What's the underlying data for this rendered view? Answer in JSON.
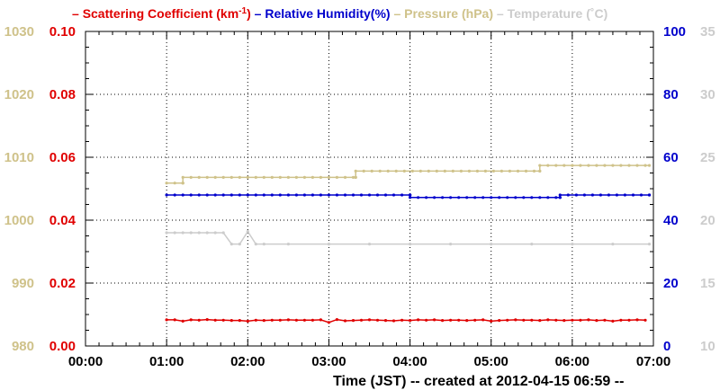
{
  "chart_data": {
    "type": "line",
    "legend_placement": "top",
    "grid": true,
    "grid_style": "dotted",
    "legend": [
      {
        "marker": "–",
        "label_prefix": "Scattering Coefficient (km",
        "label_sup": "-1",
        "label_suffix": ")",
        "color": "#e00000"
      },
      {
        "marker": "–",
        "label": "Relative Humidity(%)",
        "color": "#0000cc"
      },
      {
        "marker": "–",
        "label": "Pressure (hPa)",
        "color": "#cfc28a"
      },
      {
        "marker": "–",
        "label": "Temperature (˚C)",
        "color": "#cccccc"
      }
    ],
    "x_axis": {
      "ticks": [
        "00:00",
        "01:00",
        "02:00",
        "03:00",
        "04:00",
        "05:00",
        "06:00",
        "07:00"
      ],
      "range_hours": [
        0,
        7
      ],
      "title": "Time (JST)   -- created at 2012-04-15 06:59 --"
    },
    "y_axes": [
      {
        "id": "pressure",
        "side": "left-outer",
        "color": "#cfc28a",
        "range": [
          980,
          1030
        ],
        "ticks": [
          "980",
          "990",
          "1000",
          "1010",
          "1020",
          "1030"
        ]
      },
      {
        "id": "scattering",
        "side": "left-inner",
        "color": "#e00000",
        "range": [
          0,
          0.1
        ],
        "ticks": [
          "0.00",
          "0.02",
          "0.04",
          "0.06",
          "0.08",
          "0.10"
        ]
      },
      {
        "id": "humidity",
        "side": "right-inner",
        "color": "#0000cc",
        "range": [
          0,
          100
        ],
        "ticks": [
          "0",
          "20",
          "40",
          "60",
          "80",
          "100"
        ]
      },
      {
        "id": "temperature",
        "side": "right-outer",
        "color": "#cccccc",
        "range": [
          10,
          35
        ],
        "ticks": [
          "10",
          "15",
          "20",
          "25",
          "30",
          "35"
        ]
      }
    ],
    "series": [
      {
        "axis": "pressure",
        "color": "#cfc28a",
        "segments": [
          {
            "from": 1.0,
            "to": 1.2,
            "value": 1005.9
          },
          {
            "from": 1.2,
            "to": 3.33,
            "value": 1006.8
          },
          {
            "from": 3.33,
            "to": 5.6,
            "value": 1007.8
          },
          {
            "from": 5.6,
            "to": 6.95,
            "value": 1008.7
          }
        ]
      },
      {
        "axis": "humidity",
        "color": "#0000cc",
        "segments": [
          {
            "from": 1.0,
            "to": 4.0,
            "value": 48.0
          },
          {
            "from": 4.0,
            "to": 5.85,
            "value": 47.2
          },
          {
            "from": 5.85,
            "to": 6.95,
            "value": 48.0
          }
        ]
      },
      {
        "axis": "temperature",
        "color": "#cccccc",
        "points": [
          [
            1.0,
            19.0
          ],
          [
            1.1,
            19.0
          ],
          [
            1.2,
            19.0
          ],
          [
            1.3,
            19.0
          ],
          [
            1.4,
            19.0
          ],
          [
            1.5,
            19.0
          ],
          [
            1.6,
            19.0
          ],
          [
            1.7,
            19.0
          ],
          [
            1.8,
            18.1
          ],
          [
            1.9,
            18.1
          ],
          [
            2.0,
            19.1
          ],
          [
            2.1,
            18.1
          ],
          [
            2.2,
            18.1
          ],
          [
            2.5,
            18.1
          ],
          [
            3.0,
            18.1
          ],
          [
            3.5,
            18.1
          ],
          [
            4.0,
            18.1
          ],
          [
            4.5,
            18.1
          ],
          [
            5.0,
            18.1
          ],
          [
            5.5,
            18.1
          ],
          [
            6.0,
            18.1
          ],
          [
            6.5,
            18.1
          ],
          [
            6.95,
            18.1
          ]
        ]
      },
      {
        "axis": "scattering",
        "color": "#e00000",
        "points": [
          [
            1.0,
            0.0083
          ],
          [
            1.1,
            0.0083
          ],
          [
            1.2,
            0.0079
          ],
          [
            1.3,
            0.0083
          ],
          [
            1.4,
            0.0082
          ],
          [
            1.5,
            0.0084
          ],
          [
            1.6,
            0.0082
          ],
          [
            1.7,
            0.0082
          ],
          [
            1.8,
            0.0081
          ],
          [
            1.9,
            0.0081
          ],
          [
            2.0,
            0.0079
          ],
          [
            2.1,
            0.0082
          ],
          [
            2.2,
            0.0081
          ],
          [
            2.3,
            0.0082
          ],
          [
            2.4,
            0.0082
          ],
          [
            2.5,
            0.0083
          ],
          [
            2.6,
            0.0082
          ],
          [
            2.7,
            0.0082
          ],
          [
            2.8,
            0.0082
          ],
          [
            2.9,
            0.0083
          ],
          [
            3.0,
            0.0075
          ],
          [
            3.1,
            0.0084
          ],
          [
            3.2,
            0.008
          ],
          [
            3.3,
            0.0081
          ],
          [
            3.4,
            0.0082
          ],
          [
            3.5,
            0.0083
          ],
          [
            3.6,
            0.0082
          ],
          [
            3.7,
            0.0081
          ],
          [
            3.8,
            0.008
          ],
          [
            3.9,
            0.0082
          ],
          [
            4.0,
            0.0081
          ],
          [
            4.1,
            0.0083
          ],
          [
            4.2,
            0.0082
          ],
          [
            4.3,
            0.0083
          ],
          [
            4.4,
            0.0081
          ],
          [
            4.5,
            0.0082
          ],
          [
            4.6,
            0.0082
          ],
          [
            4.7,
            0.0081
          ],
          [
            4.8,
            0.0082
          ],
          [
            4.9,
            0.0083
          ],
          [
            5.0,
            0.0079
          ],
          [
            5.1,
            0.0081
          ],
          [
            5.2,
            0.0082
          ],
          [
            5.3,
            0.0083
          ],
          [
            5.4,
            0.0082
          ],
          [
            5.5,
            0.0082
          ],
          [
            5.6,
            0.0081
          ],
          [
            5.7,
            0.0083
          ],
          [
            5.8,
            0.0082
          ],
          [
            5.9,
            0.0081
          ],
          [
            6.0,
            0.0082
          ],
          [
            6.1,
            0.0082
          ],
          [
            6.2,
            0.0083
          ],
          [
            6.3,
            0.0081
          ],
          [
            6.4,
            0.0082
          ],
          [
            6.5,
            0.0079
          ],
          [
            6.6,
            0.0082
          ],
          [
            6.7,
            0.0082
          ],
          [
            6.8,
            0.0083
          ],
          [
            6.9,
            0.0082
          ]
        ]
      }
    ]
  }
}
